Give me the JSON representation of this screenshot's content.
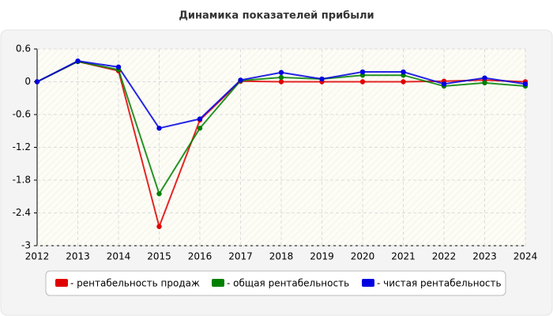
{
  "chart_data": {
    "type": "line",
    "title": "Динамика показателей прибыли",
    "categories": [
      "2012",
      "2013",
      "2014",
      "2015",
      "2016",
      "2017",
      "2018",
      "2019",
      "2020",
      "2021",
      "2022",
      "2023",
      "2024"
    ],
    "series": [
      {
        "name": "- рентабельность продаж",
        "color": "#e00000",
        "values": [
          0,
          0.37,
          0.2,
          -2.65,
          -0.7,
          0.01,
          0,
          0,
          0,
          0,
          0.01,
          0.03,
          0
        ]
      },
      {
        "name": "- общая рентабельность",
        "color": "#008000",
        "values": [
          0,
          0.37,
          0.22,
          -2.05,
          -0.85,
          0.02,
          0.08,
          0.05,
          0.12,
          0.12,
          -0.08,
          -0.02,
          -0.08
        ]
      },
      {
        "name": "- чистая рентабельность",
        "color": "#0000e0",
        "values": [
          0,
          0.38,
          0.27,
          -0.85,
          -0.68,
          0.03,
          0.17,
          0.05,
          0.18,
          0.18,
          -0.04,
          0.07,
          -0.04
        ]
      }
    ],
    "ylim": [
      -3,
      0.6
    ],
    "yticks": [
      -3,
      -2.4,
      -1.8,
      -1.2,
      -0.6,
      0,
      0.6
    ],
    "grid": true,
    "legend": "bottom"
  }
}
